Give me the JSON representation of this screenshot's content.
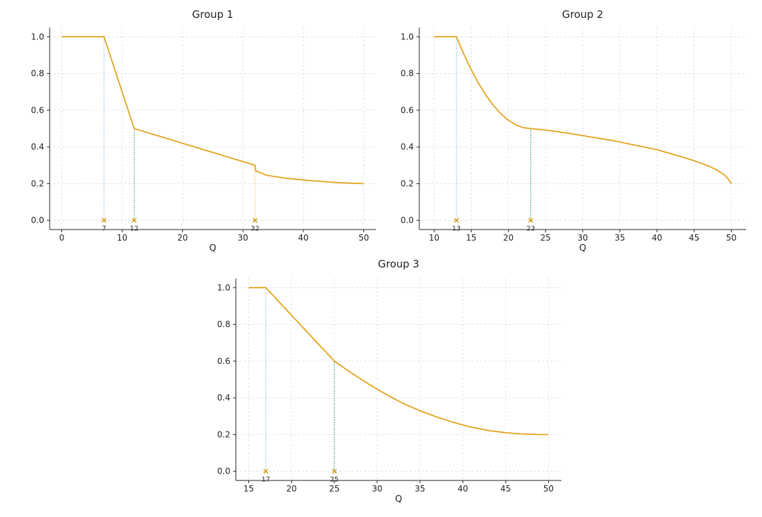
{
  "chart_data": [
    {
      "type": "line",
      "title": "Group 1",
      "xlabel": "Q",
      "ylabel": "",
      "xlim": [
        -2,
        52
      ],
      "ylim": [
        -0.05,
        1.05
      ],
      "xticks": [
        0,
        10,
        20,
        30,
        40,
        50
      ],
      "yticks": [
        0.0,
        0.2,
        0.4,
        0.6,
        0.8,
        1.0
      ],
      "grid": true,
      "line_color": "#e3a21a",
      "series": [
        {
          "x": [
            0,
            7,
            12,
            32,
            32.1,
            34,
            37,
            40,
            43,
            46,
            50
          ],
          "values": [
            1.0,
            1.0,
            0.5,
            0.3,
            0.27,
            0.245,
            0.23,
            0.22,
            0.212,
            0.205,
            0.2
          ]
        }
      ],
      "markers": [
        {
          "x": 7,
          "label": "7",
          "line_to": 1.0,
          "line_color": "#7fb9e6"
        },
        {
          "x": 12,
          "label": "12",
          "line_to": 0.5,
          "line_color": "#1f9c6b"
        },
        {
          "x": 32,
          "label": "32",
          "line_to": 0.3,
          "line_color": "#f2c45a"
        }
      ]
    },
    {
      "type": "line",
      "title": "Group 2",
      "xlabel": "Q",
      "ylabel": "",
      "xlim": [
        8,
        52
      ],
      "ylim": [
        -0.05,
        1.05
      ],
      "xticks": [
        10,
        15,
        20,
        25,
        30,
        35,
        40,
        45,
        50
      ],
      "yticks": [
        0.0,
        0.2,
        0.4,
        0.6,
        0.8,
        1.0
      ],
      "grid": true,
      "line_color": "#e3a21a",
      "series": [
        {
          "x": [
            10,
            13,
            14,
            15,
            16,
            17,
            18,
            19,
            20,
            21,
            22,
            23,
            25,
            28,
            31,
            34,
            37,
            40,
            43,
            45,
            47,
            48,
            49,
            49.5,
            50
          ],
          "values": [
            1.0,
            1.0,
            0.905,
            0.82,
            0.745,
            0.68,
            0.625,
            0.58,
            0.545,
            0.52,
            0.505,
            0.5,
            0.492,
            0.475,
            0.455,
            0.435,
            0.41,
            0.385,
            0.35,
            0.325,
            0.295,
            0.275,
            0.25,
            0.23,
            0.2
          ]
        }
      ],
      "markers": [
        {
          "x": 13,
          "label": "13",
          "line_to": 1.0,
          "line_color": "#7fb9e6"
        },
        {
          "x": 23,
          "label": "23",
          "line_to": 0.5,
          "line_color": "#1f9c6b"
        }
      ]
    },
    {
      "type": "line",
      "title": "Group 3",
      "xlabel": "Q",
      "ylabel": "",
      "xlim": [
        13.5,
        51.5
      ],
      "ylim": [
        -0.05,
        1.05
      ],
      "xticks": [
        15,
        20,
        25,
        30,
        35,
        40,
        45,
        50
      ],
      "yticks": [
        0.0,
        0.2,
        0.4,
        0.6,
        0.8,
        1.0
      ],
      "grid": true,
      "line_color": "#e3a21a",
      "series": [
        {
          "x": [
            15,
            17,
            19,
            21,
            23,
            25,
            27,
            29,
            31,
            33,
            35,
            37,
            39,
            41,
            43,
            45,
            47,
            49,
            50
          ],
          "values": [
            1.0,
            1.0,
            0.9,
            0.8,
            0.7,
            0.6,
            0.535,
            0.475,
            0.42,
            0.37,
            0.33,
            0.295,
            0.265,
            0.24,
            0.222,
            0.21,
            0.203,
            0.2,
            0.2
          ]
        }
      ],
      "markers": [
        {
          "x": 17,
          "label": "17",
          "line_to": 1.0,
          "line_color": "#7fb9e6"
        },
        {
          "x": 25,
          "label": "25",
          "line_to": 0.6,
          "line_color": "#1f9c6b"
        }
      ]
    }
  ]
}
